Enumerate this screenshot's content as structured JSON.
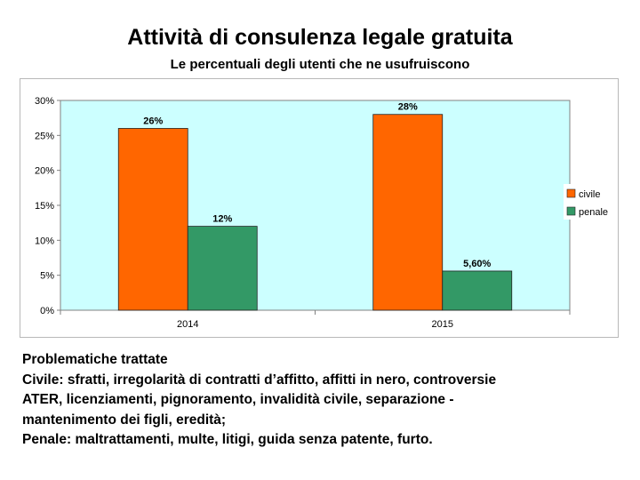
{
  "slide": {
    "title": "Attività di consulenza legale gratuita",
    "subtitle": "Le percentuali degli utenti che ne usufruiscono"
  },
  "chart_data": {
    "type": "bar",
    "categories": [
      "2014",
      "2015"
    ],
    "series": [
      {
        "name": "civile",
        "values": [
          26,
          28
        ],
        "labels": [
          "26%",
          "28%"
        ],
        "color": "#ff6600"
      },
      {
        "name": "penale",
        "values": [
          12,
          5.6
        ],
        "labels": [
          "12%",
          "5,60%"
        ],
        "color": "#339966"
      }
    ],
    "ylim": [
      0,
      30
    ],
    "yticks": [
      0,
      5,
      10,
      15,
      20,
      25,
      30
    ],
    "ytick_labels": [
      "0%",
      "5%",
      "10%",
      "15%",
      "20%",
      "25%",
      "30%"
    ],
    "legend_position": "right",
    "plot_background": "#ccffff",
    "grid": false
  },
  "notes": {
    "heading": "Problematiche trattate",
    "civile_lines": [
      "Civile: sfratti, irregolarità di contratti d’affitto, affitti in nero, controversie",
      "ATER, licenziamenti, pignoramento, invalidità civile, separazione -",
      "mantenimento dei figli, eredità;"
    ],
    "penale_line": "Penale: maltrattamenti, multe, litigi, guida senza patente, furto."
  }
}
